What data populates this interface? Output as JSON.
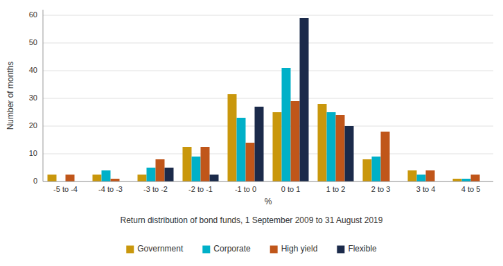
{
  "chart_data": {
    "type": "bar",
    "subtitle": "Return distribution of bond funds, 1 September 2009 to 31 August 2019",
    "xlabel": "%",
    "ylabel": "Number of months",
    "categories": [
      "-5 to -4",
      "-4 to -3",
      "-3 to -2",
      "-2 to -1",
      "-1 to 0",
      "0 to 1",
      "1 to 2",
      "2 to 3",
      "3 to 4",
      "4 to 5"
    ],
    "series": [
      {
        "name": "Government",
        "color": "#C9970C",
        "values": [
          2.5,
          2.5,
          2.5,
          12.5,
          31.5,
          25,
          28,
          8,
          4,
          1
        ]
      },
      {
        "name": "Corporate",
        "color": "#00B0C8",
        "values": [
          0,
          4,
          5,
          9,
          23,
          41,
          25,
          9,
          2.5,
          1
        ]
      },
      {
        "name": "High yield",
        "color": "#C0561A",
        "values": [
          2.5,
          1,
          8,
          12.5,
          14,
          29,
          24,
          18,
          4,
          2.5
        ]
      },
      {
        "name": "Flexible",
        "color": "#1B2A4A",
        "values": [
          0,
          0,
          5,
          2.5,
          27,
          59,
          20,
          0,
          0,
          0
        ]
      }
    ],
    "ylim": [
      0,
      62
    ],
    "yticks": [
      0,
      10,
      20,
      30,
      40,
      50,
      60
    ],
    "grid": true,
    "legend": "bottom"
  }
}
